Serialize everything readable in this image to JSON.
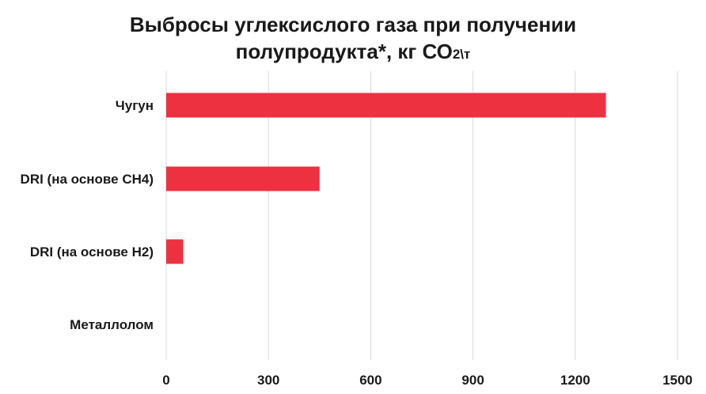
{
  "chart_data": {
    "type": "bar",
    "orientation": "horizontal",
    "title_line1": "Выбросы углексислого газа при получении",
    "title_line2_main": "полупродукта*, кг СО",
    "title_line2_sub": "2",
    "title_line2_unit": "\\т",
    "categories": [
      "Чугун",
      "DRI (на основе СН4)",
      "DRI (на основе Н2)",
      "Металлолом"
    ],
    "values": [
      1290,
      450,
      50,
      0
    ],
    "xlim": [
      0,
      1500
    ],
    "xticks": [
      "0",
      "300",
      "600",
      "900",
      "1200",
      "1500"
    ],
    "xtick_values": [
      0,
      300,
      600,
      900,
      1200,
      1500
    ],
    "grid": "vertical",
    "colors": {
      "bar": "#ee3140",
      "grid": "#d9d9d9",
      "text": "#1a1a1a"
    }
  }
}
